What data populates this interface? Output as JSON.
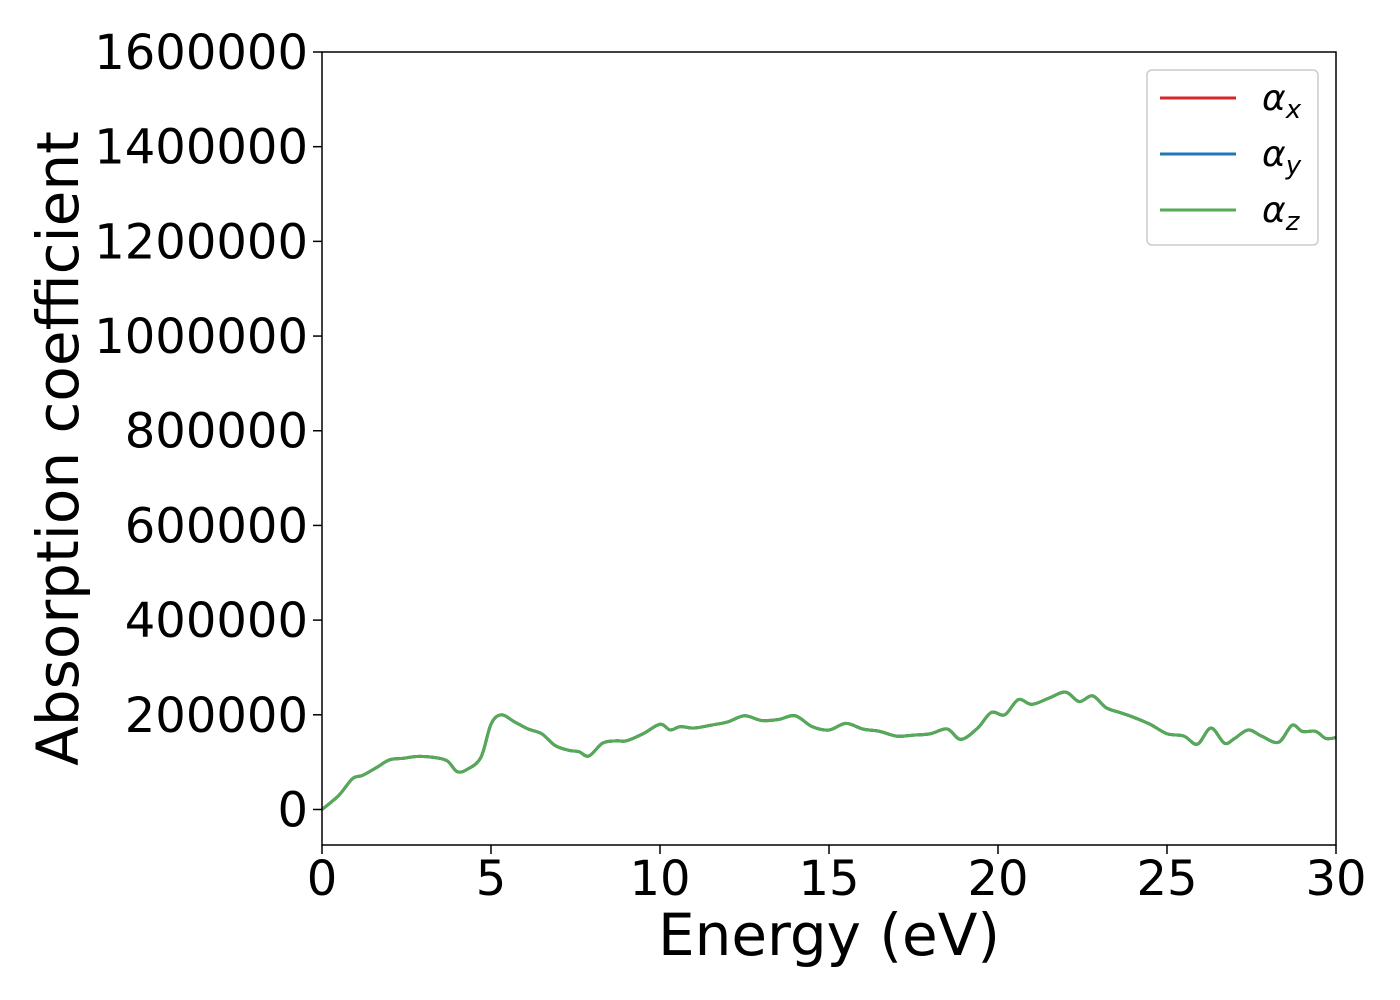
{
  "chart_data": {
    "type": "line",
    "title": "",
    "xlabel": "Energy (eV)",
    "ylabel": "Absorption coefficient",
    "xlim": [
      0,
      30
    ],
    "ylim": [
      -75000,
      1600000
    ],
    "xticks": [
      0,
      5,
      10,
      15,
      20,
      25,
      30
    ],
    "xtick_labels": [
      "0",
      "5",
      "10",
      "15",
      "20",
      "25",
      "30"
    ],
    "yticks": [
      0,
      200000,
      400000,
      600000,
      800000,
      1000000,
      1200000,
      1400000,
      1600000
    ],
    "ytick_labels": [
      "0",
      "200000",
      "400000",
      "600000",
      "800000",
      "1000000",
      "1200000",
      "1400000",
      "1600000"
    ],
    "grid": false,
    "legend_position": "top-right",
    "x": [
      0,
      0.5,
      0.9,
      1.2,
      1.6,
      2.0,
      2.4,
      2.8,
      3.3,
      3.7,
      4.0,
      4.3,
      4.7,
      5.0,
      5.3,
      5.7,
      6.1,
      6.5,
      6.9,
      7.3,
      7.6,
      7.9,
      8.3,
      8.7,
      9.0,
      9.5,
      10.0,
      10.3,
      10.6,
      11.0,
      11.5,
      12.0,
      12.5,
      13.0,
      13.5,
      14.0,
      14.5,
      15.0,
      15.5,
      16.0,
      16.5,
      17.0,
      17.5,
      18.0,
      18.5,
      18.9,
      19.4,
      19.8,
      20.2,
      20.6,
      21.0,
      21.5,
      22.0,
      22.4,
      22.8,
      23.2,
      23.6,
      24.0,
      24.5,
      25.0,
      25.5,
      25.9,
      26.3,
      26.7,
      27.0,
      27.4,
      27.8,
      28.3,
      28.7,
      29.0,
      29.4,
      29.7,
      30.0
    ],
    "series": [
      {
        "name": "αx",
        "color": "#d62728",
        "values": [
          0,
          30000,
          65000,
          72000,
          88000,
          105000,
          108000,
          112000,
          110000,
          103000,
          80000,
          85000,
          110000,
          180000,
          200000,
          185000,
          170000,
          160000,
          135000,
          125000,
          122000,
          113000,
          140000,
          145000,
          145000,
          160000,
          180000,
          168000,
          175000,
          172000,
          178000,
          185000,
          198000,
          188000,
          190000,
          198000,
          175000,
          168000,
          182000,
          170000,
          165000,
          155000,
          157000,
          160000,
          170000,
          148000,
          172000,
          205000,
          200000,
          232000,
          222000,
          235000,
          248000,
          228000,
          240000,
          215000,
          205000,
          195000,
          180000,
          160000,
          155000,
          138000,
          172000,
          140000,
          150000,
          168000,
          155000,
          142000,
          178000,
          165000,
          165000,
          150000,
          152000
        ]
      },
      {
        "name": "αy",
        "color": "#1f77b4",
        "values": [
          0,
          30000,
          65000,
          72000,
          88000,
          105000,
          108000,
          112000,
          110000,
          103000,
          80000,
          85000,
          110000,
          180000,
          200000,
          185000,
          170000,
          160000,
          135000,
          125000,
          122000,
          113000,
          140000,
          145000,
          145000,
          160000,
          180000,
          168000,
          175000,
          172000,
          178000,
          185000,
          198000,
          188000,
          190000,
          198000,
          175000,
          168000,
          182000,
          170000,
          165000,
          155000,
          157000,
          160000,
          170000,
          148000,
          172000,
          205000,
          200000,
          232000,
          222000,
          235000,
          248000,
          228000,
          240000,
          215000,
          205000,
          195000,
          180000,
          160000,
          155000,
          138000,
          172000,
          140000,
          150000,
          168000,
          155000,
          142000,
          178000,
          165000,
          165000,
          150000,
          152000
        ]
      },
      {
        "name": "αz",
        "color": "#55aa55",
        "values": [
          0,
          30000,
          65000,
          72000,
          88000,
          105000,
          108000,
          112000,
          110000,
          103000,
          80000,
          85000,
          110000,
          180000,
          200000,
          185000,
          170000,
          160000,
          135000,
          125000,
          122000,
          113000,
          140000,
          145000,
          145000,
          160000,
          180000,
          168000,
          175000,
          172000,
          178000,
          185000,
          198000,
          188000,
          190000,
          198000,
          175000,
          168000,
          182000,
          170000,
          165000,
          155000,
          157000,
          160000,
          170000,
          148000,
          172000,
          205000,
          200000,
          232000,
          222000,
          235000,
          248000,
          228000,
          240000,
          215000,
          205000,
          195000,
          180000,
          160000,
          155000,
          138000,
          172000,
          140000,
          150000,
          168000,
          155000,
          142000,
          178000,
          165000,
          165000,
          150000,
          152000
        ]
      }
    ],
    "legend": [
      {
        "symbol": "α",
        "subscript": "x",
        "color": "#d62728"
      },
      {
        "symbol": "α",
        "subscript": "y",
        "color": "#1f77b4"
      },
      {
        "symbol": "α",
        "subscript": "z",
        "color": "#55aa55"
      }
    ]
  }
}
